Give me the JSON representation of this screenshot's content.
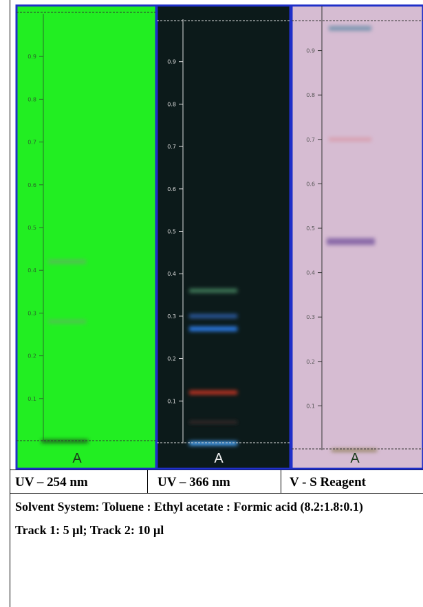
{
  "panels": [
    {
      "lane_label": "A",
      "caption": "UV – 254 nm",
      "ticks": [
        0.1,
        0.2,
        0.3,
        0.4,
        0.5,
        0.6,
        0.7,
        0.8,
        0.9
      ]
    },
    {
      "lane_label": "A",
      "caption": "UV – 366 nm",
      "ticks": [
        0.1,
        0.2,
        0.3,
        0.4,
        0.5,
        0.6,
        0.7,
        0.8,
        0.9
      ]
    },
    {
      "lane_label": "A",
      "caption": "V - S Reagent",
      "ticks": [
        0.1,
        0.2,
        0.3,
        0.4,
        0.5,
        0.6,
        0.7,
        0.8,
        0.9
      ]
    }
  ],
  "notes": {
    "solvent": "Solvent System: Toluene : Ethyl acetate : Formic acid (8.2:1.8:0.1)",
    "tracks": "Track 1:  5 µl; Track 2: 10 µl"
  }
}
